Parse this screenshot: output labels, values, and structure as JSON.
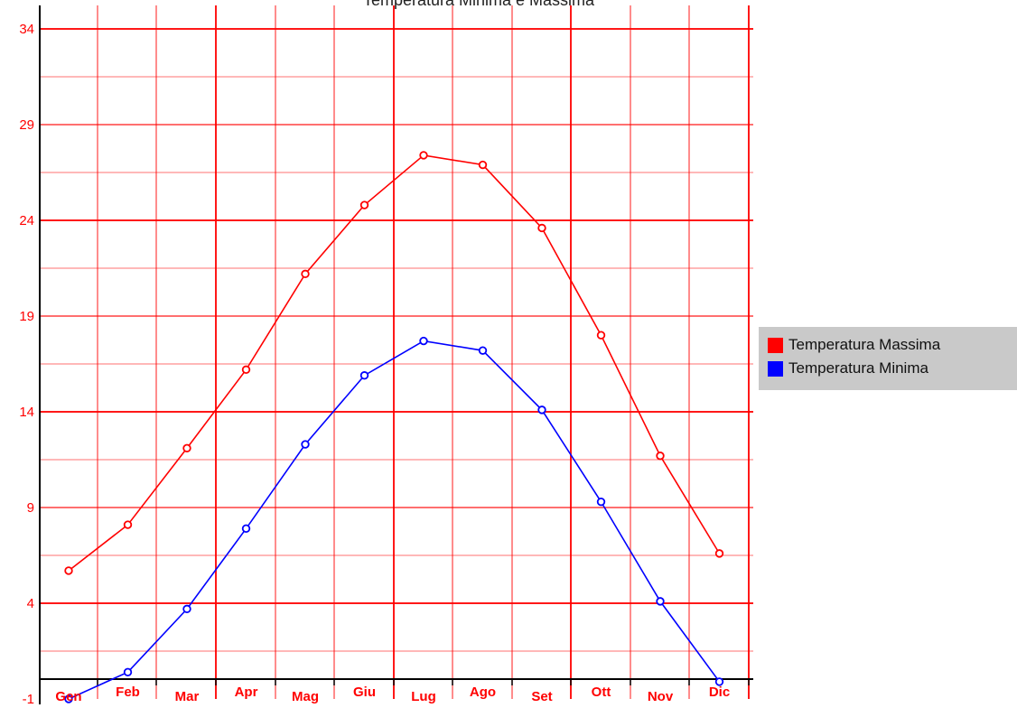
{
  "chart_data": {
    "type": "line",
    "title": "Temperatura Minima e Massima",
    "categories": [
      "Gen",
      "Feb",
      "Mar",
      "Apr",
      "Mag",
      "Giu",
      "Lug",
      "Ago",
      "Set",
      "Ott",
      "Nov",
      "Dic"
    ],
    "series": [
      {
        "name": "Temperatura Massima",
        "color": "#ff0000",
        "values": [
          5.7,
          8.1,
          12.1,
          16.2,
          21.2,
          24.8,
          27.4,
          26.9,
          23.6,
          18.0,
          11.7,
          6.6
        ]
      },
      {
        "name": "Temperatura Minima",
        "color": "#0000ff",
        "values": [
          -1.0,
          0.4,
          3.7,
          7.9,
          12.3,
          15.9,
          17.7,
          17.2,
          14.1,
          9.3,
          4.1,
          -0.1
        ]
      }
    ],
    "ylim": [
      -1,
      34
    ],
    "yticks": [
      -1,
      4,
      9,
      14,
      19,
      24,
      29,
      34
    ],
    "grid": true,
    "legend_position": "right",
    "axis_color": "#ff0000"
  }
}
